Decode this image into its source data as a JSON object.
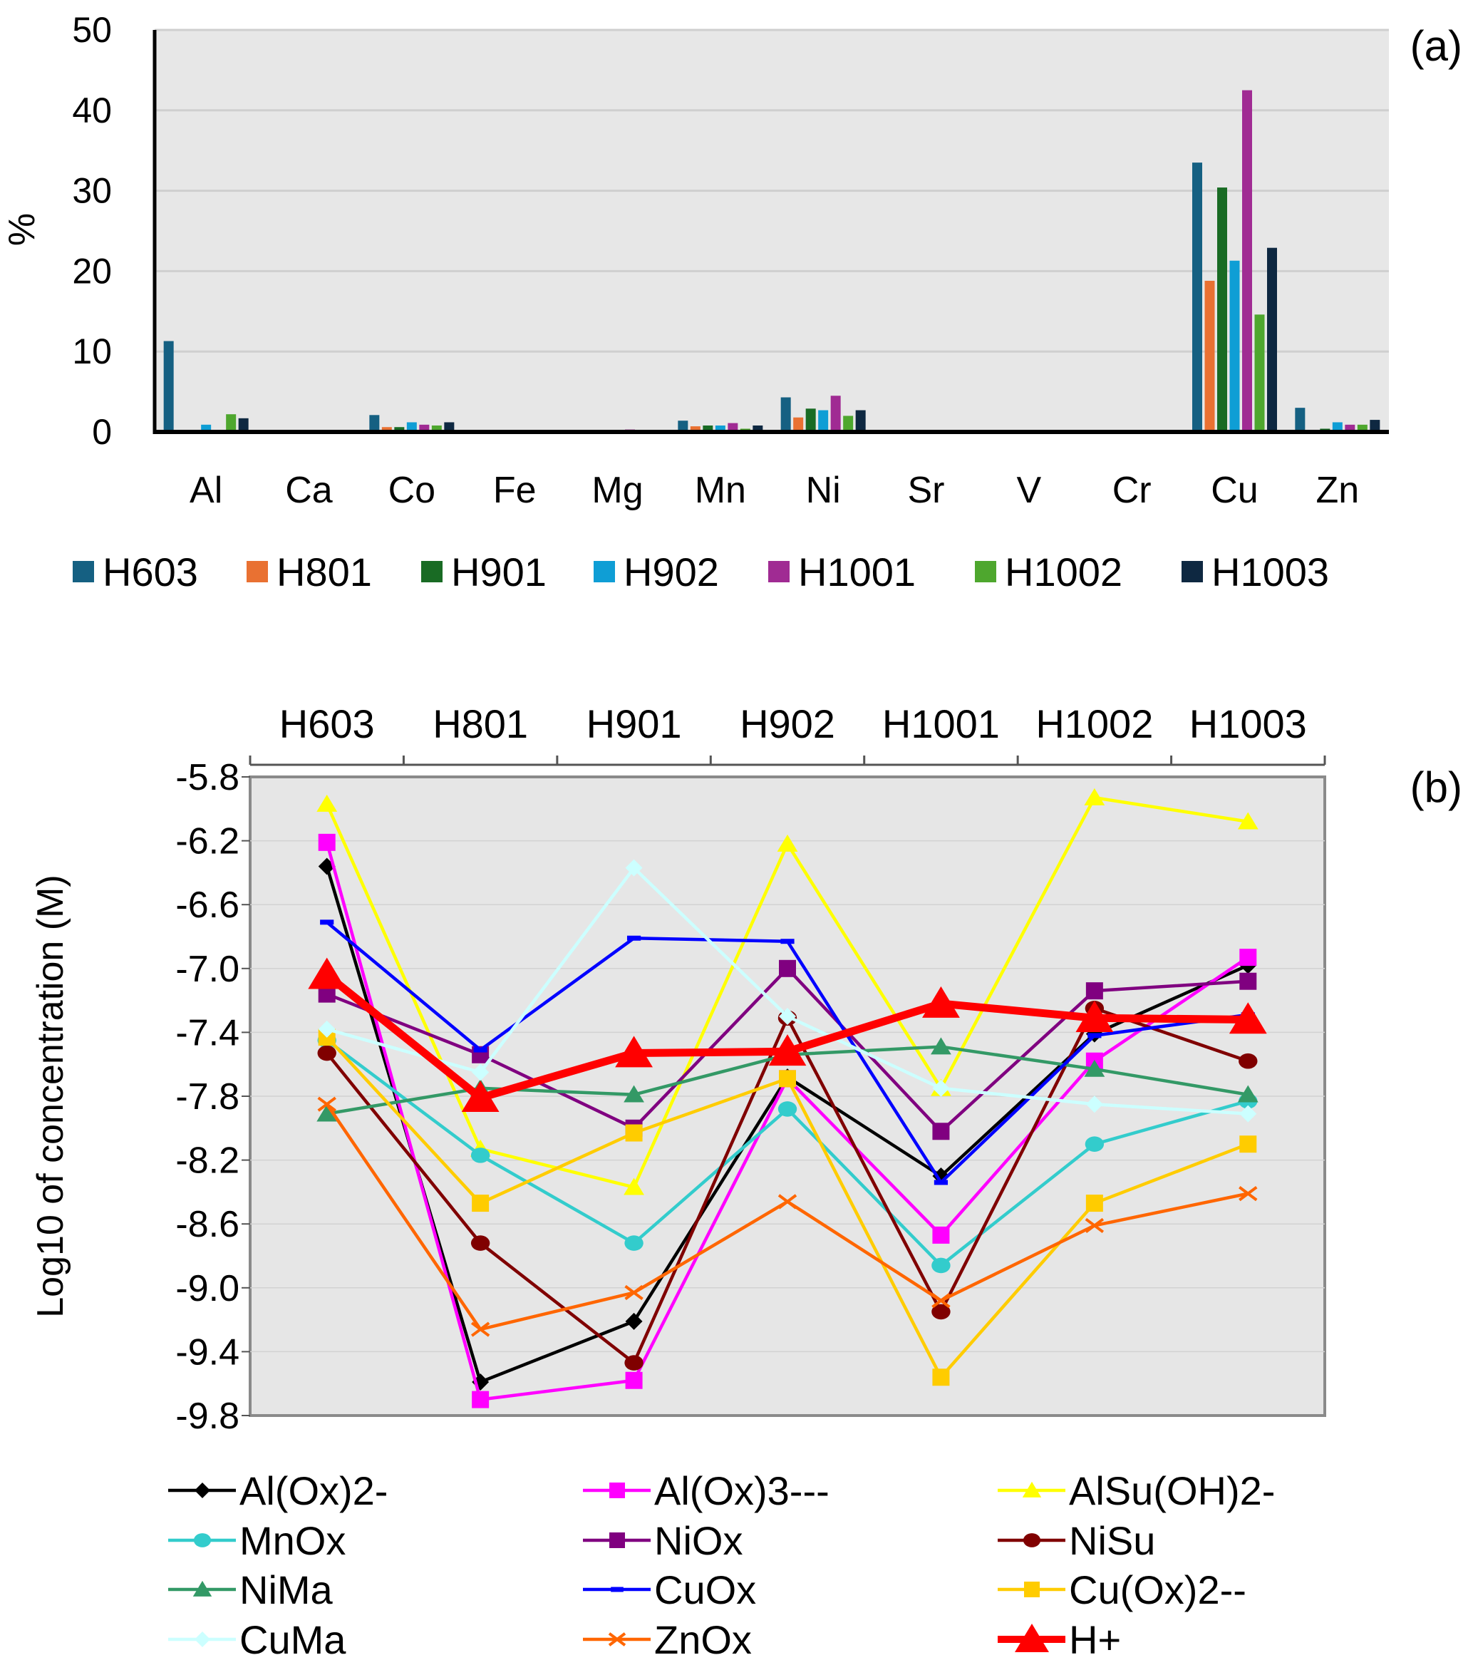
{
  "chart_data": [
    {
      "type": "bar",
      "panel_label": "(a)",
      "ylabel": "%",
      "xlabel": "",
      "ylim": [
        0,
        50
      ],
      "yticks": [
        "0",
        "10",
        "20",
        "30",
        "40",
        "50"
      ],
      "grid": true,
      "legend_position": "bottom",
      "categories": [
        "Al",
        "Ca",
        "Co",
        "Fe",
        "Mg",
        "Mn",
        "Ni",
        "Sr",
        "V",
        "Cr",
        "Cu",
        "Zn"
      ],
      "series": [
        {
          "name": "H603",
          "color": "#156082",
          "values": [
            11.3,
            0,
            2.1,
            0,
            0.1,
            1.4,
            4.3,
            0,
            0,
            0,
            33.5,
            3.0
          ]
        },
        {
          "name": "H801",
          "color": "#e97132",
          "values": [
            0,
            0,
            0.6,
            0,
            0,
            0.7,
            1.8,
            0,
            0,
            0,
            18.8,
            0.2
          ]
        },
        {
          "name": "H901",
          "color": "#196b24",
          "values": [
            0,
            0,
            0.6,
            0,
            0.1,
            0.8,
            2.9,
            0,
            0,
            0,
            30.4,
            0.4
          ]
        },
        {
          "name": "H902",
          "color": "#0f9ed5",
          "values": [
            0.9,
            0,
            1.2,
            0,
            0,
            0.8,
            2.7,
            0,
            0,
            0,
            21.3,
            1.2
          ]
        },
        {
          "name": "H1001",
          "color": "#a02b93",
          "values": [
            0.2,
            0,
            0.9,
            0,
            0.3,
            1.1,
            4.5,
            0,
            0,
            0.1,
            42.5,
            0.9
          ]
        },
        {
          "name": "H1002",
          "color": "#4ea72e",
          "values": [
            2.2,
            0,
            0.8,
            0,
            0,
            0.4,
            2.0,
            0,
            0,
            0,
            14.6,
            0.9
          ]
        },
        {
          "name": "H1003",
          "color": "#0e2841",
          "values": [
            1.7,
            0,
            1.2,
            0,
            0,
            0.8,
            2.7,
            0,
            0,
            0,
            22.9,
            1.5
          ]
        }
      ]
    },
    {
      "type": "line",
      "panel_label": "(b)",
      "ylabel": "Log10 of concentration (M)",
      "xlabel": "",
      "ylim": [
        -9.8,
        -5.8
      ],
      "yticks": [
        "-5.8",
        "-6.2",
        "-6.6",
        "-7.0",
        "-7.4",
        "-7.8",
        "-8.2",
        "-8.6",
        "-9.0",
        "-9.4",
        "-9.8"
      ],
      "x_axis_position": "top",
      "grid": true,
      "legend_position": "bottom",
      "categories": [
        "H603",
        "H801",
        "H901",
        "H902",
        "H1001",
        "H1002",
        "H1003"
      ],
      "series": [
        {
          "name": "Al(Ox)2-",
          "color": "#000000",
          "marker": "diamond",
          "values": [
            -6.36,
            -9.59,
            -9.21,
            -7.68,
            -8.3,
            -7.41,
            -6.98
          ]
        },
        {
          "name": "Al(Ox)3---",
          "color": "#ff00ff",
          "marker": "square",
          "values": [
            -6.21,
            -9.7,
            -9.58,
            -7.69,
            -8.67,
            -7.58,
            -6.93
          ]
        },
        {
          "name": "AlSu(OH)2-",
          "color": "#ffff00",
          "marker": "triangle",
          "values": [
            -5.97,
            -8.13,
            -8.37,
            -6.22,
            -7.75,
            -5.93,
            -6.08
          ]
        },
        {
          "name": "MnOx",
          "color": "#33cccc",
          "marker": "circle",
          "values": [
            -7.45,
            -8.17,
            -8.72,
            -7.88,
            -8.86,
            -8.1,
            -7.83
          ]
        },
        {
          "name": "NiOx",
          "color": "#800080",
          "marker": "square",
          "values": [
            -7.16,
            -7.54,
            -8.0,
            -7.0,
            -8.02,
            -7.14,
            -7.08
          ]
        },
        {
          "name": "NiSu",
          "color": "#800000",
          "marker": "circle",
          "values": [
            -7.53,
            -8.72,
            -9.47,
            -7.31,
            -9.15,
            -7.25,
            -7.58
          ]
        },
        {
          "name": "NiMa",
          "color": "#339966",
          "marker": "triangle",
          "values": [
            -7.91,
            -7.75,
            -7.79,
            -7.54,
            -7.49,
            -7.63,
            -7.79
          ]
        },
        {
          "name": "CuOx",
          "color": "#0000ff",
          "marker": "dash",
          "values": [
            -6.71,
            -7.51,
            -6.81,
            -6.83,
            -8.34,
            -7.42,
            -7.29
          ]
        },
        {
          "name": "Cu(Ox)2--",
          "color": "#ffcc00",
          "marker": "square",
          "values": [
            -7.43,
            -8.47,
            -8.03,
            -7.69,
            -9.56,
            -8.47,
            -8.1
          ]
        },
        {
          "name": "CuMa",
          "color": "#ccffff",
          "marker": "diamond",
          "values": [
            -7.38,
            -7.65,
            -6.37,
            -7.3,
            -7.75,
            -7.85,
            -7.91
          ]
        },
        {
          "name": "ZnOx",
          "color": "#ff6600",
          "marker": "x",
          "values": [
            -7.85,
            -9.26,
            -9.03,
            -8.46,
            -9.08,
            -8.61,
            -8.41
          ]
        },
        {
          "name": "H+",
          "color": "#ff0000",
          "marker": "triangle",
          "emphasis": true,
          "values": [
            -7.04,
            -7.81,
            -7.53,
            -7.52,
            -7.22,
            -7.31,
            -7.32
          ]
        }
      ]
    }
  ]
}
